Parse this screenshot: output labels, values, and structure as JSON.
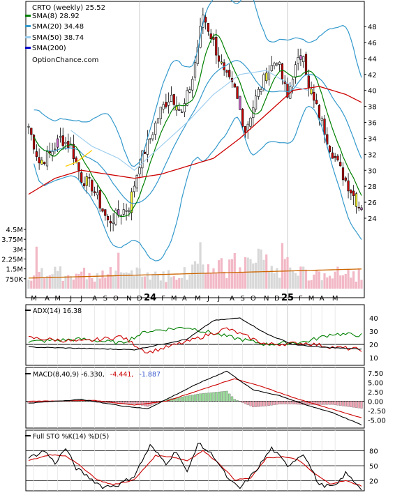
{
  "legend": {
    "title": "CRTO (weekly) 25.52",
    "sma8": "SMA(8) 28.92",
    "sma20": "SMA(20) 34.48",
    "sma50": "SMA(50) 38.74",
    "sma200": "SMA(200)",
    "site": "OptionChance.com"
  },
  "colors": {
    "up": "#000000",
    "down": "#cc0000",
    "sma8": "#008000",
    "sma20": "#3399cc",
    "sma50": "#99ccee",
    "sma200": "#0000cc",
    "bollinger": "#3399cc",
    "sma_long": "#cc0000",
    "vol_up": "#d8d8d8",
    "vol_down": "#f2b8c6",
    "vol_ma": "#cc6600"
  },
  "panels": {
    "adx_label": "ADX(14) 16.38",
    "macd_label": "MACD(8,40,9) -6.330,",
    "macd_signal": "-4.441,",
    "macd_hist": "-1.887",
    "sto_label": "Full STO %K(14) %D(5)"
  },
  "chart_data": {
    "type": "line",
    "title": "CRTO (weekly) 25.52",
    "x_ticks": [
      "M",
      "A",
      "M",
      "J",
      "J",
      "A",
      "S",
      "O",
      "N",
      "D",
      "24",
      "F",
      "M",
      "A",
      "M",
      "J",
      "J",
      "A",
      "S",
      "O",
      "N",
      "D",
      "25",
      "F",
      "M",
      "A",
      "M"
    ],
    "price_ticks": [
      24,
      26,
      28,
      30,
      32,
      34,
      36,
      38,
      40,
      42,
      44,
      46,
      48
    ],
    "volume_ticks": [
      "4.5M",
      "3.75M",
      "3M",
      "2.25M",
      "1.5M",
      "750K"
    ],
    "volume_tick_values": [
      4500000,
      3750000,
      3000000,
      2250000,
      1500000,
      750000
    ],
    "adx_ticks": [
      40,
      30,
      20,
      10
    ],
    "macd_ticks": [
      "7.50",
      "5.00",
      "2.50",
      "0.00",
      "-2.50",
      "-5.00"
    ],
    "macd_tick_values": [
      7.5,
      5,
      2.5,
      0,
      -2.5,
      -5
    ],
    "sto_ticks": [
      80,
      50,
      20
    ],
    "price_key": [
      [
        0,
        35.5
      ],
      [
        4,
        31
      ],
      [
        8,
        32
      ],
      [
        12,
        34
      ],
      [
        16,
        33
      ],
      [
        20,
        29
      ],
      [
        24,
        28
      ],
      [
        30,
        23.5
      ],
      [
        34,
        24.5
      ],
      [
        38,
        25.5
      ],
      [
        42,
        31
      ],
      [
        46,
        34
      ],
      [
        50,
        37.5
      ],
      [
        54,
        39.5
      ],
      [
        58,
        37
      ],
      [
        62,
        41.5
      ],
      [
        66,
        49.5
      ],
      [
        70,
        46
      ],
      [
        74,
        42
      ],
      [
        78,
        40
      ],
      [
        82,
        35
      ],
      [
        86,
        39
      ],
      [
        90,
        42
      ],
      [
        94,
        44
      ],
      [
        98,
        39
      ],
      [
        100,
        42
      ],
      [
        104,
        45
      ],
      [
        106,
        40
      ],
      [
        110,
        37
      ],
      [
        114,
        33
      ],
      [
        118,
        30
      ],
      [
        122,
        27.5
      ],
      [
        125,
        25.5
      ]
    ],
    "sma200_key": [
      [
        0,
        27
      ],
      [
        10,
        29
      ],
      [
        20,
        30
      ],
      [
        30,
        29.5
      ],
      [
        40,
        29
      ],
      [
        50,
        29.5
      ],
      [
        60,
        30.5
      ],
      [
        70,
        31.5
      ],
      [
        80,
        34
      ],
      [
        90,
        37
      ],
      [
        100,
        40
      ],
      [
        110,
        40.5
      ],
      [
        120,
        39.5
      ],
      [
        126,
        38.5
      ]
    ],
    "sma50_key": [
      [
        16,
        35
      ],
      [
        24,
        33
      ],
      [
        34,
        31.5
      ],
      [
        40,
        30
      ],
      [
        50,
        33
      ],
      [
        60,
        36
      ],
      [
        70,
        39.5
      ],
      [
        80,
        42
      ],
      [
        90,
        42.5
      ],
      [
        100,
        40.5
      ],
      [
        106,
        40
      ]
    ],
    "sma50_early_key": [
      [
        14,
        30.5
      ],
      [
        18,
        31
      ],
      [
        24,
        32.5
      ]
    ],
    "adx_key": [
      [
        0,
        18
      ],
      [
        20,
        17
      ],
      [
        40,
        16
      ],
      [
        60,
        24
      ],
      [
        70,
        38
      ],
      [
        80,
        40
      ],
      [
        90,
        28
      ],
      [
        100,
        20
      ],
      [
        110,
        18
      ],
      [
        120,
        17
      ],
      [
        126,
        16.4
      ]
    ],
    "plusdi_key": [
      [
        0,
        22
      ],
      [
        20,
        24
      ],
      [
        35,
        21
      ],
      [
        45,
        30
      ],
      [
        60,
        33
      ],
      [
        75,
        26
      ],
      [
        90,
        20
      ],
      [
        105,
        22
      ],
      [
        115,
        28
      ],
      [
        126,
        27
      ]
    ],
    "minusdi_key": [
      [
        0,
        25
      ],
      [
        20,
        22
      ],
      [
        35,
        26
      ],
      [
        45,
        14
      ],
      [
        60,
        22
      ],
      [
        75,
        32
      ],
      [
        90,
        20
      ],
      [
        105,
        21
      ],
      [
        115,
        18
      ],
      [
        126,
        16
      ]
    ],
    "macd_key": [
      [
        0,
        -0.5
      ],
      [
        20,
        0.5
      ],
      [
        35,
        -1.2
      ],
      [
        45,
        -2
      ],
      [
        55,
        1.5
      ],
      [
        65,
        5
      ],
      [
        75,
        8
      ],
      [
        85,
        3
      ],
      [
        95,
        1.5
      ],
      [
        105,
        -1
      ],
      [
        115,
        -3
      ],
      [
        126,
        -6.3
      ]
    ],
    "signal_key": [
      [
        0,
        0
      ],
      [
        25,
        0.2
      ],
      [
        40,
        -1
      ],
      [
        52,
        0
      ],
      [
        65,
        3
      ],
      [
        78,
        6
      ],
      [
        90,
        3.5
      ],
      [
        100,
        1
      ],
      [
        112,
        -1.5
      ],
      [
        126,
        -4.4
      ]
    ],
    "stok_key": [
      [
        0,
        65
      ],
      [
        6,
        80
      ],
      [
        10,
        55
      ],
      [
        14,
        85
      ],
      [
        18,
        45
      ],
      [
        22,
        30
      ],
      [
        28,
        8
      ],
      [
        34,
        12
      ],
      [
        40,
        30
      ],
      [
        46,
        90
      ],
      [
        52,
        55
      ],
      [
        56,
        80
      ],
      [
        60,
        35
      ],
      [
        64,
        95
      ],
      [
        70,
        70
      ],
      [
        76,
        20
      ],
      [
        80,
        5
      ],
      [
        86,
        40
      ],
      [
        92,
        85
      ],
      [
        98,
        50
      ],
      [
        104,
        75
      ],
      [
        110,
        12
      ],
      [
        116,
        8
      ],
      [
        120,
        35
      ],
      [
        126,
        5
      ]
    ],
    "stod_key": [
      [
        0,
        60
      ],
      [
        8,
        72
      ],
      [
        14,
        70
      ],
      [
        20,
        48
      ],
      [
        26,
        22
      ],
      [
        32,
        12
      ],
      [
        40,
        22
      ],
      [
        48,
        70
      ],
      [
        54,
        68
      ],
      [
        60,
        60
      ],
      [
        66,
        80
      ],
      [
        72,
        55
      ],
      [
        78,
        22
      ],
      [
        84,
        25
      ],
      [
        90,
        65
      ],
      [
        96,
        68
      ],
      [
        102,
        62
      ],
      [
        108,
        35
      ],
      [
        114,
        14
      ],
      [
        120,
        20
      ],
      [
        126,
        10
      ]
    ]
  }
}
